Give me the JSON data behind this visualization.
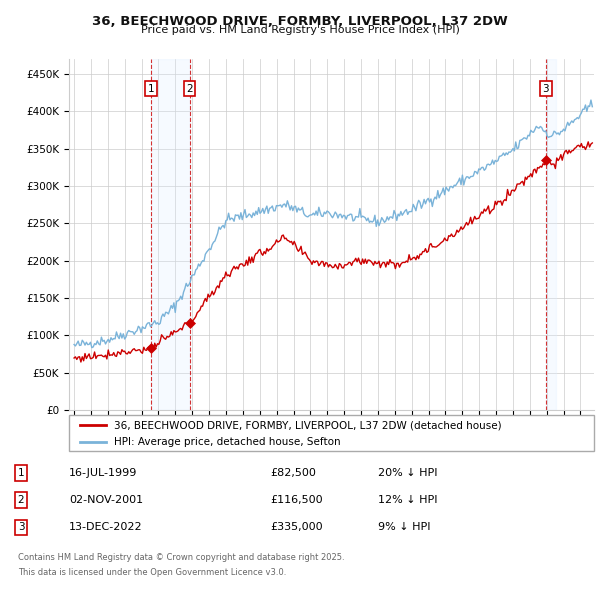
{
  "title": "36, BEECHWOOD DRIVE, FORMBY, LIVERPOOL, L37 2DW",
  "subtitle": "Price paid vs. HM Land Registry's House Price Index (HPI)",
  "ylim": [
    0,
    470000
  ],
  "yticks": [
    0,
    50000,
    100000,
    150000,
    200000,
    250000,
    300000,
    350000,
    400000,
    450000
  ],
  "ytick_labels": [
    "£0",
    "£50K",
    "£100K",
    "£150K",
    "£200K",
    "£250K",
    "£300K",
    "£350K",
    "£400K",
    "£450K"
  ],
  "xlim_start": 1994.7,
  "xlim_end": 2025.8,
  "transactions": [
    {
      "date_num": 1999.54,
      "price": 82500,
      "label": "1"
    },
    {
      "date_num": 2001.84,
      "price": 116500,
      "label": "2"
    },
    {
      "date_num": 2022.95,
      "price": 335000,
      "label": "3"
    }
  ],
  "transaction_dates_str": [
    "16-JUL-1999",
    "02-NOV-2001",
    "13-DEC-2022"
  ],
  "transaction_prices_str": [
    "£82,500",
    "£116,500",
    "£335,000"
  ],
  "transaction_hpi_str": [
    "20% ↓ HPI",
    "12% ↓ HPI",
    "9% ↓ HPI"
  ],
  "legend_line1": "36, BEECHWOOD DRIVE, FORMBY, LIVERPOOL, L37 2DW (detached house)",
  "legend_line2": "HPI: Average price, detached house, Sefton",
  "footer1": "Contains HM Land Registry data © Crown copyright and database right 2025.",
  "footer2": "This data is licensed under the Open Government Licence v3.0.",
  "line_color_red": "#cc0000",
  "line_color_blue": "#7ab3d9",
  "shade_color": "#ddeeff",
  "vline_color": "#cc0000",
  "box_color": "#cc0000",
  "grid_color": "#cccccc",
  "bg_color": "#ffffff"
}
